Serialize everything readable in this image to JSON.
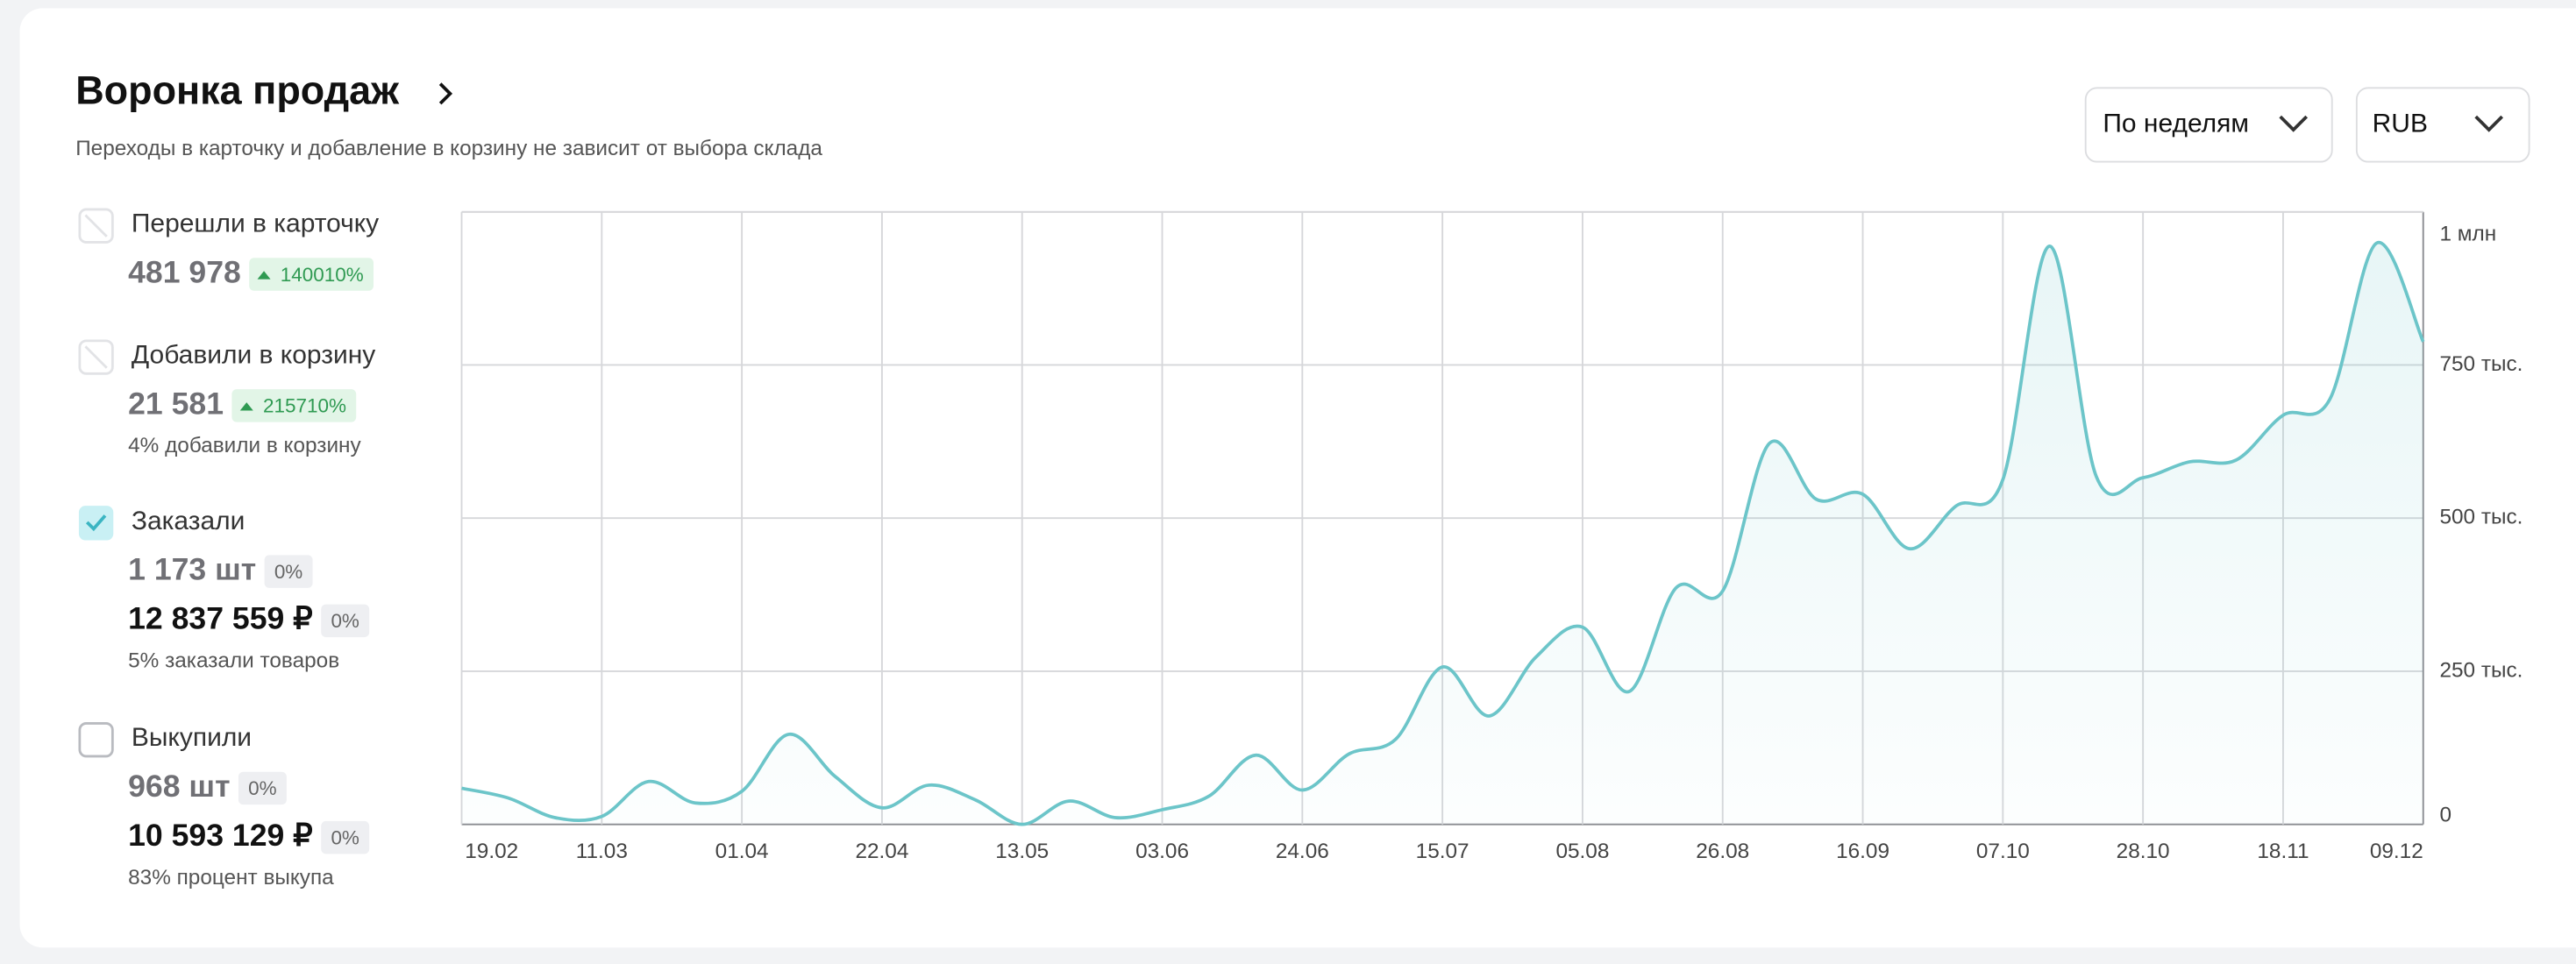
{
  "header": {
    "title": "Воронка продаж",
    "subtitle": "Переходы в карточку и добавление в корзину не зависит от выбора склада"
  },
  "controls": {
    "period": "По неделям",
    "currency": "RUB"
  },
  "metrics": [
    {
      "label": "Перешли в карточку",
      "state": "disabled",
      "rows": [
        {
          "text": "481 978",
          "badge": "140010%",
          "trend": "up",
          "strong": false
        }
      ]
    },
    {
      "label": "Добавили в корзину",
      "state": "disabled",
      "rows": [
        {
          "text": "21 581",
          "badge": "215710%",
          "trend": "up",
          "strong": false
        }
      ],
      "note": "4% добавили в корзину"
    },
    {
      "label": "Заказали",
      "state": "checked",
      "rows": [
        {
          "text": "1 173 шт",
          "badge": "0%",
          "trend": "flat",
          "strong": false
        },
        {
          "text": "12 837 559 ₽",
          "badge": "0%",
          "trend": "flat",
          "strong": true
        }
      ],
      "note": "5% заказали товаров"
    },
    {
      "label": "Выкупили",
      "state": "unchecked",
      "rows": [
        {
          "text": "968 шт",
          "badge": "0%",
          "trend": "flat",
          "strong": false
        },
        {
          "text": "10 593 129 ₽",
          "badge": "0%",
          "trend": "flat",
          "strong": true
        }
      ],
      "note": "83% процент выкупа"
    }
  ],
  "chart_data": {
    "type": "area",
    "color": "#6cc5c9",
    "grid": true,
    "categories": [
      "19.02",
      null,
      null,
      "11.03",
      null,
      null,
      "01.04",
      null,
      null,
      "22.04",
      null,
      null,
      "13.05",
      null,
      null,
      "03.06",
      null,
      null,
      "24.06",
      null,
      null,
      "15.07",
      null,
      null,
      "05.08",
      null,
      null,
      "26.08",
      null,
      null,
      "16.09",
      null,
      null,
      "07.10",
      null,
      null,
      "28.10",
      null,
      null,
      "18.11",
      null,
      null,
      "09.12"
    ],
    "values": [
      59000,
      43000,
      11000,
      13000,
      70000,
      35000,
      54000,
      147000,
      78000,
      27000,
      64000,
      40000,
      0,
      38000,
      11000,
      24000,
      46000,
      113000,
      56000,
      115000,
      139000,
      257000,
      177000,
      273000,
      322000,
      217000,
      386000,
      381000,
      622000,
      531000,
      539000,
      450000,
      520000,
      563000,
      944000,
      568000,
      566000,
      592000,
      595000,
      668000,
      694000,
      949000,
      788000
    ],
    "ylim": [
      0,
      1000000
    ],
    "yticks": [
      0,
      {
        "value": 250000,
        "label": "250 тыс."
      },
      {
        "value": 500000,
        "label": "500 тыс."
      },
      {
        "value": 750000,
        "label": "750 тыс."
      },
      {
        "value": 1000000,
        "label": "1 млн"
      }
    ]
  }
}
